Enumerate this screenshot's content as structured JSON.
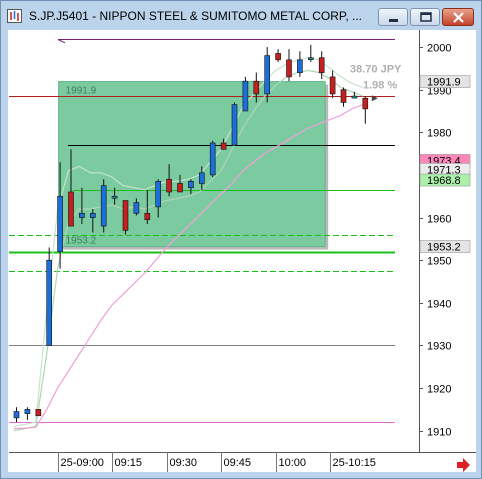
{
  "window": {
    "title": "S.JP.J5401 - NIPPON STEEL & SUMITOMO METAL CORP, ...",
    "buttons": [
      "minimize",
      "maximize",
      "close"
    ]
  },
  "colors": {
    "up_candle": "#1c6fd8",
    "down_candle": "#c42020",
    "neutral_candle": "#1f8f8f",
    "zone_fill": "#7ccaa0",
    "upper_line": "#7a1f7a",
    "ma_pink": "#f0a0d8",
    "resistance_red": "#b02020",
    "green_level": "#19c019"
  },
  "chart_data": {
    "type": "candlestick",
    "symbol": "S.JP.J5401",
    "ylim": [
      1905,
      2004
    ],
    "yticks": [
      1910,
      1920,
      1930,
      1940,
      1950,
      1960,
      1970,
      1980,
      1990,
      2000
    ],
    "xtick_labels": [
      "25-09:00",
      "09:15",
      "09:30",
      "09:45",
      "10:00",
      "25-10:15"
    ],
    "xtick_index": [
      4,
      9,
      14,
      19,
      24,
      29
    ],
    "candles": [
      {
        "o": 1913.0,
        "h": 1915.5,
        "l": 1912.0,
        "c": 1914.5
      },
      {
        "o": 1914.0,
        "h": 1915.5,
        "l": 1912.5,
        "c": 1915.0
      },
      {
        "o": 1915.0,
        "h": 1915.0,
        "l": 1913.5,
        "c": 1913.5
      },
      {
        "o": 1930.0,
        "h": 1953.0,
        "l": 1930.0,
        "c": 1950.0
      },
      {
        "o": 1952.0,
        "h": 1973.0,
        "l": 1948.0,
        "c": 1965.0
      },
      {
        "o": 1966.0,
        "h": 1976.0,
        "l": 1958.0,
        "c": 1958.0
      },
      {
        "o": 1960.0,
        "h": 1967.0,
        "l": 1958.5,
        "c": 1961.0
      },
      {
        "o": 1960.0,
        "h": 1962.0,
        "l": 1956.5,
        "c": 1961.0
      },
      {
        "o": 1958.0,
        "h": 1969.0,
        "l": 1956.5,
        "c": 1967.5
      },
      {
        "o": 1965.0,
        "h": 1967.0,
        "l": 1963.0,
        "c": 1965.0
      },
      {
        "o": 1964.0,
        "h": 1964.0,
        "l": 1956.0,
        "c": 1957.0
      },
      {
        "o": 1961.0,
        "h": 1964.5,
        "l": 1960.5,
        "c": 1963.5
      },
      {
        "o": 1961.0,
        "h": 1966.5,
        "l": 1958.5,
        "c": 1959.5
      },
      {
        "o": 1962.5,
        "h": 1969.0,
        "l": 1960.0,
        "c": 1968.5
      },
      {
        "o": 1969.0,
        "h": 1972.5,
        "l": 1965.0,
        "c": 1966.0
      },
      {
        "o": 1968.0,
        "h": 1970.0,
        "l": 1966.0,
        "c": 1966.0
      },
      {
        "o": 1967.0,
        "h": 1969.0,
        "l": 1965.5,
        "c": 1968.5
      },
      {
        "o": 1968.0,
        "h": 1972.0,
        "l": 1966.5,
        "c": 1970.5
      },
      {
        "o": 1970.0,
        "h": 1978.0,
        "l": 1969.5,
        "c": 1977.5
      },
      {
        "o": 1977.5,
        "h": 1978.5,
        "l": 1976.0,
        "c": 1976.0
      },
      {
        "o": 1977.0,
        "h": 1987.0,
        "l": 1977.0,
        "c": 1986.5
      },
      {
        "o": 1985.0,
        "h": 1993.0,
        "l": 1985.0,
        "c": 1992.0
      },
      {
        "o": 1992.0,
        "h": 1994.0,
        "l": 1987.0,
        "c": 1989.0
      },
      {
        "o": 1989.0,
        "h": 2000.0,
        "l": 1987.0,
        "c": 1998.0
      },
      {
        "o": 1998.5,
        "h": 1999.5,
        "l": 1996.5,
        "c": 1997.0
      },
      {
        "o": 1997.0,
        "h": 1999.5,
        "l": 1992.0,
        "c": 1993.0
      },
      {
        "o": 1994.0,
        "h": 1999.0,
        "l": 1993.0,
        "c": 1997.0
      },
      {
        "o": 1997.5,
        "h": 2000.5,
        "l": 1996.5,
        "c": 1997.5
      },
      {
        "o": 1997.5,
        "h": 1999.0,
        "l": 1992.5,
        "c": 1994.0
      },
      {
        "o": 1993.0,
        "h": 1994.5,
        "l": 1988.0,
        "c": 1989.0
      },
      {
        "o": 1990.0,
        "h": 1990.5,
        "l": 1986.0,
        "c": 1987.0
      },
      {
        "o": 1988.5,
        "h": 1989.5,
        "l": 1988.0,
        "c": 1988.5
      },
      {
        "o": 1988.0,
        "h": 1988.5,
        "l": 1982.0,
        "c": 1985.5
      }
    ],
    "zone": {
      "start_index": 4,
      "end_index": 28,
      "low": 1953.2,
      "high": 1991.9,
      "low_label": "1953.2",
      "high_label": "1991.9"
    },
    "levels": [
      {
        "value": 2002.0,
        "color": "#7a1f7a",
        "style": "solid"
      },
      {
        "value": 1988.5,
        "color": "#b02020",
        "style": "solid"
      },
      {
        "value": 1977.0,
        "color": "#000000",
        "style": "solid"
      },
      {
        "value": 1966.5,
        "color": "#19c019",
        "style": "solid"
      },
      {
        "value": 1956.0,
        "color": "#19c019",
        "style": "dashed"
      },
      {
        "value": 1952.0,
        "color": "#19c019",
        "style": "solid"
      },
      {
        "value": 1947.5,
        "color": "#19c019",
        "style": "dashed"
      },
      {
        "value": 1930.0,
        "color": "#808080",
        "style": "solid"
      },
      {
        "value": 1912.0,
        "color": "#e070d0",
        "style": "solid"
      }
    ],
    "price_tags": [
      {
        "label": "1991.9",
        "value": 1991.9,
        "bg": "#e4e4e4",
        "fg": "#000000"
      },
      {
        "label": "1973.4",
        "value": 1973.4,
        "bg": "#ff88bb",
        "fg": "#000000"
      },
      {
        "label": "1971.3",
        "value": 1971.3,
        "bg": "#ececec",
        "fg": "#000000"
      },
      {
        "label": "1968.8",
        "value": 1968.8,
        "bg": "#aaf0aa",
        "fg": "#000000"
      },
      {
        "label": "1953.2",
        "value": 1953.2,
        "bg": "#e4e4e4",
        "fg": "#000000"
      }
    ],
    "annotations": {
      "change": "38.70 JPY",
      "percent": "1.98 %"
    },
    "ma_pink": [
      1910.5,
      1910.6,
      1910.8,
      1915.0,
      1920.0,
      1924.0,
      1928.0,
      1932.0,
      1936.0,
      1939.5,
      1942.0,
      1944.5,
      1947.0,
      1950.0,
      1953.0,
      1955.5,
      1958.0,
      1960.5,
      1963.0,
      1965.5,
      1968.0,
      1971.0,
      1973.0,
      1975.0,
      1976.5,
      1978.0,
      1979.5,
      1981.0,
      1982.0,
      1983.0,
      1984.0,
      1985.5,
      1986.5
    ],
    "band_upper": [
      1911.0,
      1911.5,
      1912.0,
      1938.0,
      1962.0,
      1971.0,
      1972.0,
      1970.5,
      1970.5,
      1969.5,
      1967.5,
      1967.0,
      1966.5,
      1967.5,
      1968.5,
      1968.5,
      1969.0,
      1970.0,
      1973.0,
      1976.0,
      1981.0,
      1986.0,
      1989.0,
      1992.0,
      1994.5,
      1996.0,
      1997.0,
      1997.5,
      1997.0,
      1995.0,
      1993.0,
      1991.5,
      1990.5
    ],
    "band_mid": [
      1910.0,
      1910.5,
      1911.0,
      1928.0,
      1948.0,
      1959.0,
      1962.0,
      1962.0,
      1962.5,
      1963.0,
      1962.0,
      1962.5,
      1962.0,
      1963.0,
      1964.0,
      1964.5,
      1965.0,
      1966.0,
      1968.5,
      1971.0,
      1976.0,
      1981.0,
      1985.0,
      1988.5,
      1991.0,
      1993.0,
      1994.0,
      1994.5,
      1994.0,
      1992.5,
      1990.5,
      1989.5,
      1988.5
    ]
  }
}
